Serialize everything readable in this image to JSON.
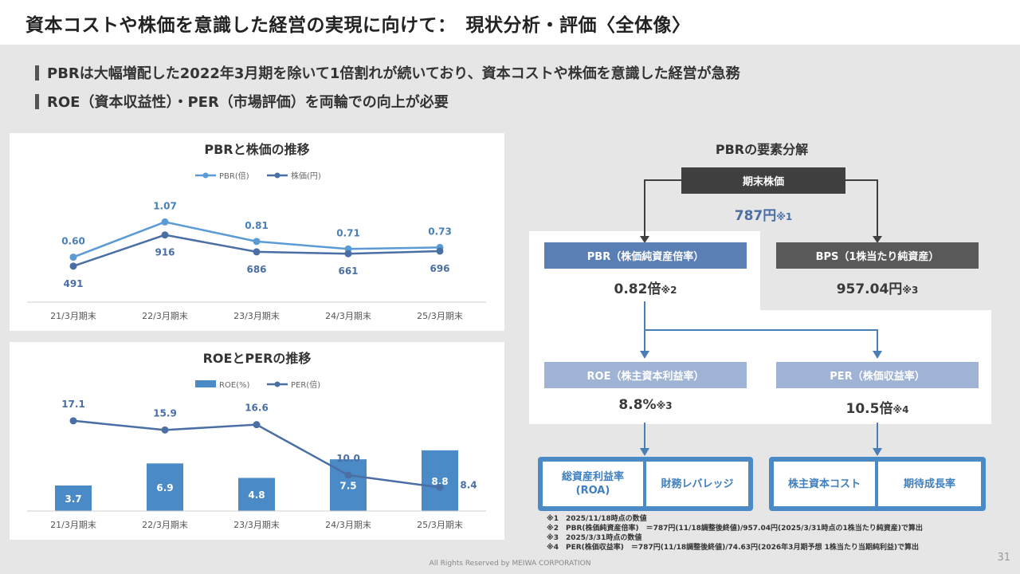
{
  "title": "資本コストや株価を意識した経営の実現に向けて：　現状分析・評価〈全体像〉",
  "bullets": [
    "PBRは大幅増配した2022年3月期を除いて1倍割れが続いており、資本コストや株価を意識した経営が急務",
    "ROE（資本収益性）・PER（市場評価）を両輪での向上が必要"
  ],
  "chart_data": [
    {
      "type": "line",
      "title": "PBRと株価の推移",
      "categories": [
        "21/3月期末",
        "22/3月期末",
        "23/3月期末",
        "24/3月期末",
        "25/3月期末"
      ],
      "series": [
        {
          "name": "PBR(倍)",
          "values": [
            0.6,
            1.07,
            0.81,
            0.71,
            0.73
          ],
          "color": "#5b9bd5"
        },
        {
          "name": "株価(円)",
          "values": [
            491,
            916,
            686,
            661,
            696
          ],
          "color": "#4a6fa5"
        }
      ]
    },
    {
      "type": "bar",
      "title": "ROEとPERの推移",
      "categories": [
        "21/3月期末",
        "22/3月期末",
        "23/3月期末",
        "24/3月期末",
        "25/3月期末"
      ],
      "series": [
        {
          "name": "ROE(%)",
          "type": "bar",
          "values": [
            3.7,
            6.9,
            4.8,
            7.5,
            8.8
          ],
          "color": "#4a8ac6"
        },
        {
          "name": "PER(倍)",
          "type": "line",
          "values": [
            17.1,
            15.9,
            16.6,
            10.0,
            8.4
          ],
          "color": "#4a6fa5"
        }
      ]
    }
  ],
  "decomposition": {
    "title": "PBRの要素分解",
    "price_label": "期末株価",
    "price_value": "787円",
    "price_note": "※1",
    "pbr_label": "PBR（株価純資産倍率）",
    "pbr_value": "0.82倍",
    "pbr_note": "※2",
    "bps_label": "BPS（1株当たり純資産）",
    "bps_value": "957.04円",
    "bps_note": "※3",
    "roe_label": "ROE（株主資本利益率）",
    "roe_value": "8.8%",
    "roe_note": "※3",
    "per_label": "PER（株価収益率）",
    "per_value": "10.5倍",
    "per_note": "※4",
    "roa_label": "総資産利益率\n(ROA)",
    "leverage_label": "財務レバレッジ",
    "cost_label": "株主資本コスト",
    "growth_label": "期待成長率",
    "colors": {
      "dark": "#404040",
      "gray": "#595959",
      "pbr": "#5a7fb5",
      "light": "#9fb3d4",
      "blue": "#4a8ac6"
    }
  },
  "notes": [
    "※1　2025/11/18時点の数値",
    "※2　PBR(株価純資産倍率)　＝787円(11/18調整後終値)/957.04円(2025/3/31時点の1株当たり純資産)で算出",
    "※3　2025/3/31時点の数値",
    "※4　PER(株価収益率)　＝787円(11/18調整後終値)/74.63円(2026年3月期予想 1株当たり当期純利益)で算出"
  ],
  "footer": "All Rights Reserved by MEIWA CORPORATION",
  "page_number": "31"
}
